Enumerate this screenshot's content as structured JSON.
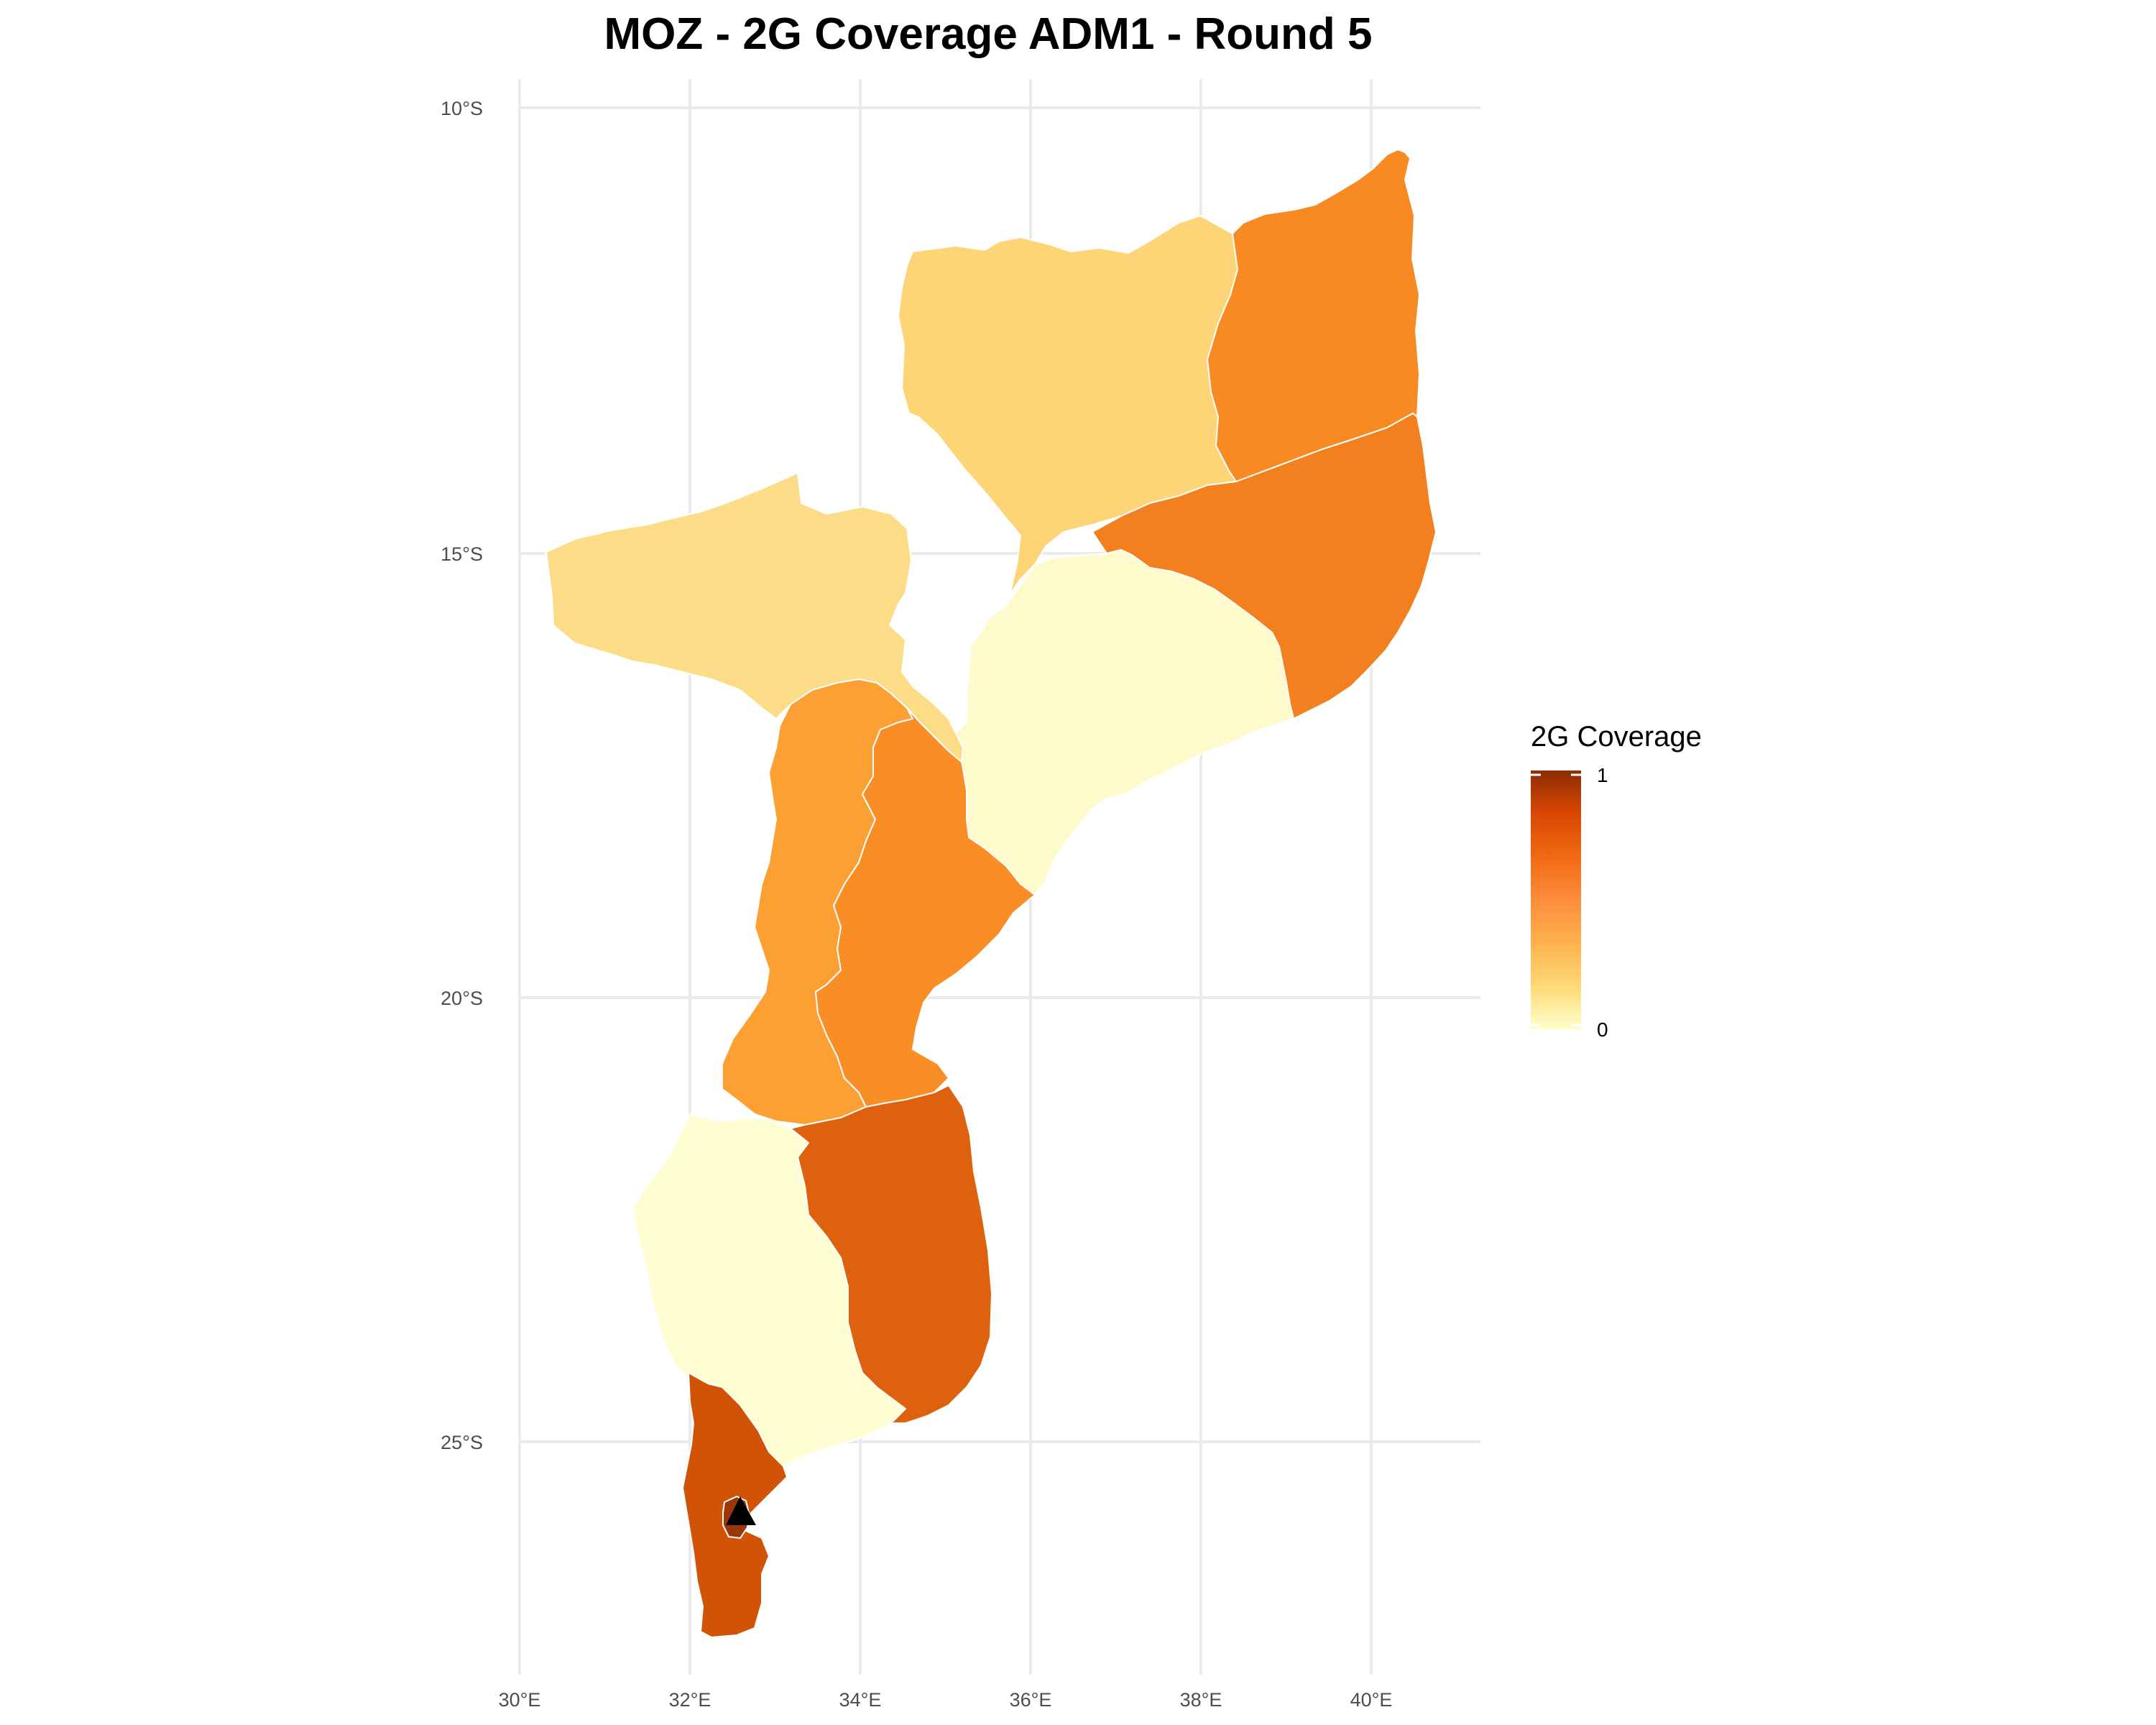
{
  "title": "MOZ - 2G Coverage ADM1 - Round 5",
  "x_ticks": [
    "30°E",
    "32°E",
    "34°E",
    "36°E",
    "38°E",
    "40°E"
  ],
  "y_ticks": [
    "10°S",
    "15°S",
    "20°S",
    "25°S"
  ],
  "legend": {
    "title": "2G Coverage",
    "max_label": "1",
    "min_label": "0",
    "colors": [
      "#ffffcc",
      "#fed976",
      "#feb24c",
      "#fd8d3c",
      "#f16913",
      "#d94801",
      "#8c2d04"
    ]
  },
  "marker": {
    "shape": "triangle",
    "color": "#000000"
  },
  "chart_data": {
    "type": "choropleth",
    "variable": "2G Coverage",
    "value_range": [
      0,
      1
    ],
    "x_axis": {
      "ticks": [
        30,
        32,
        34,
        36,
        38,
        40
      ],
      "unit": "degrees east"
    },
    "y_axis": {
      "ticks": [
        -10,
        -15,
        -20,
        -25
      ],
      "unit": "degrees south"
    },
    "grid": true,
    "legend_position": "right",
    "regions": [
      {
        "id": "niassa",
        "coverage": 0.25,
        "color": "#fed576"
      },
      {
        "id": "cabo-delgado",
        "coverage": 0.6,
        "color": "#f78a23"
      },
      {
        "id": "nampula",
        "coverage": 0.65,
        "color": "#f2801f"
      },
      {
        "id": "tete",
        "coverage": 0.22,
        "color": "#fddc88"
      },
      {
        "id": "zambezia",
        "coverage": 0.05,
        "color": "#fffacc"
      },
      {
        "id": "manica",
        "coverage": 0.5,
        "color": "#fca033"
      },
      {
        "id": "sofala",
        "coverage": 0.58,
        "color": "#f98e27"
      },
      {
        "id": "gaza",
        "coverage": 0.02,
        "color": "#fffed3"
      },
      {
        "id": "inhambane",
        "coverage": 0.8,
        "color": "#de620e"
      },
      {
        "id": "maputo",
        "coverage": 0.88,
        "color": "#d05306"
      },
      {
        "id": "maputo-city",
        "coverage": 0.97,
        "color": "#99360a"
      }
    ]
  }
}
